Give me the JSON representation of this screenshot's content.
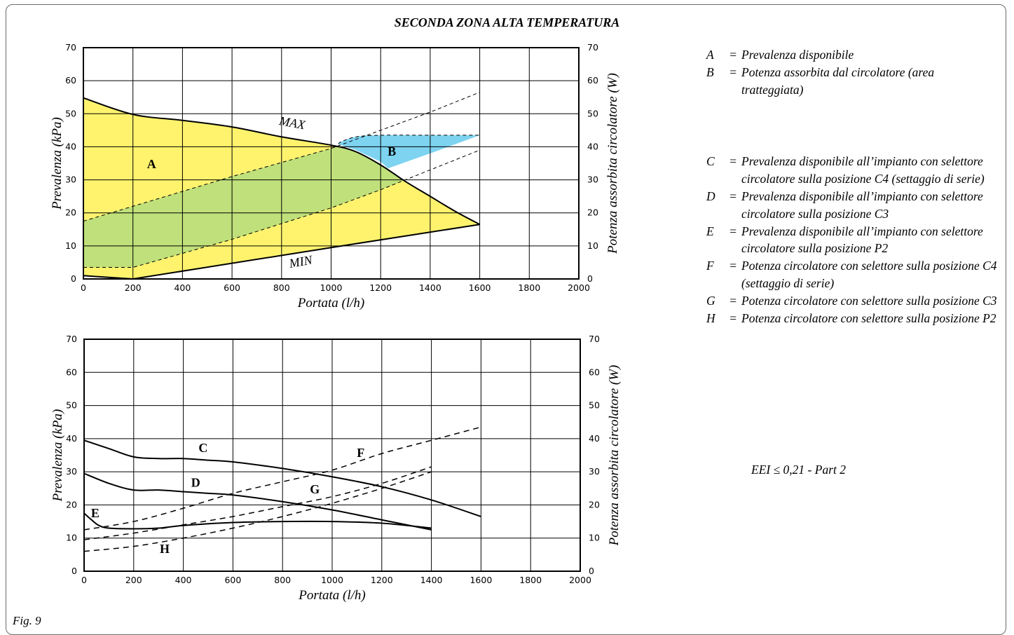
{
  "title": "SECONDA ZONA ALTA TEMPERATURA",
  "figure_label": "Fig. 9",
  "eei_note": "EEI ≤ 0,21 - Part 2",
  "legend": [
    {
      "key": "A",
      "text": "Prevalenza disponibile"
    },
    {
      "key": "B",
      "text": "Potenza assorbita dal circolatore (area tratteggiata)"
    },
    {
      "key": "C",
      "text": "Prevalenza disponibile all’impianto con selettore circolatore sulla posizione C4 (settaggio di serie)"
    },
    {
      "key": "D",
      "text": "Prevalenza disponibile all’impianto con selettore circolatore sulla posizione C3"
    },
    {
      "key": "E",
      "text": "Prevalenza disponibile all’impianto con selettore circolatore sulla posizione P2"
    },
    {
      "key": "F",
      "text": "Potenza circolatore con selettore sulla posizione C4 (settaggio di serie)"
    },
    {
      "key": "G",
      "text": "Potenza circolatore con selettore sulla posizione C3"
    },
    {
      "key": "H",
      "text": "Potenza circolatore con selettore sulla posizione P2"
    }
  ],
  "colors": {
    "yellow": "#fff36e",
    "green": "#bfe07a",
    "blue": "#7dd3f0",
    "line": "#000000",
    "grid": "#000000"
  },
  "chart_data": [
    {
      "type": "area",
      "xlabel": "Portata (l/h)",
      "ylabel": "Prevalenza (kPa)",
      "y2label": "Potenza assorbita circolatore (W)",
      "xlim": [
        0,
        2000
      ],
      "ylim": [
        0,
        70
      ],
      "y2lim": [
        0,
        70
      ],
      "xticks": [
        0,
        200,
        400,
        600,
        800,
        1000,
        1200,
        1400,
        1600,
        1800,
        2000
      ],
      "yticks": [
        0,
        10,
        20,
        30,
        40,
        50,
        60,
        70
      ],
      "grid": true,
      "max_label": "MAX",
      "min_label": "MIN",
      "area_a_label": "A",
      "area_b_label": "B",
      "series": [
        {
          "name": "MAX",
          "x": [
            0,
            200,
            400,
            600,
            800,
            1000,
            1100,
            1200,
            1300,
            1400,
            1500,
            1600
          ],
          "y": [
            54.8,
            49.8,
            48,
            46,
            43,
            40.5,
            38.5,
            34.5,
            29.5,
            25,
            20.5,
            16.5
          ]
        },
        {
          "name": "MIN",
          "x": [
            0,
            200,
            1000,
            1600
          ],
          "y": [
            1,
            0,
            9.5,
            16.5
          ]
        },
        {
          "name": "B",
          "x": [
            0,
            200,
            600,
            1000,
            1200,
            1400,
            1600
          ],
          "y": [
            17.5,
            22,
            31,
            39.5,
            45,
            50.5,
            56.5
          ],
          "y_lower": [
            3.5,
            3.5,
            12,
            21.5,
            27,
            33,
            39
          ],
          "plateau": [
            [
              1040,
              41.5
            ],
            [
              1100,
              43
            ],
            [
              1200,
              43.5
            ],
            [
              1400,
              43.5
            ],
            [
              1600,
              43.5
            ]
          ]
        }
      ]
    },
    {
      "type": "line",
      "xlabel": "Portata (l/h)",
      "ylabel": "Prevalenza (kPa)",
      "y2label": "Potenza assorbita circolatore (W)",
      "xlim": [
        0,
        2000
      ],
      "ylim": [
        0,
        70
      ],
      "y2lim": [
        0,
        70
      ],
      "xticks": [
        0,
        200,
        400,
        600,
        800,
        1000,
        1200,
        1400,
        1600,
        1800,
        2000
      ],
      "yticks": [
        0,
        10,
        20,
        30,
        40,
        50,
        60,
        70
      ],
      "grid": true,
      "series": [
        {
          "name": "C",
          "dashed": false,
          "x": [
            0,
            100,
            200,
            300,
            400,
            500,
            600,
            800,
            1000,
            1200,
            1400,
            1600
          ],
          "y": [
            39.5,
            37,
            34.5,
            34,
            34,
            33.5,
            33,
            31,
            28.5,
            25.5,
            21.5,
            16.5
          ]
        },
        {
          "name": "D",
          "dashed": false,
          "x": [
            0,
            100,
            200,
            300,
            400,
            500,
            600,
            800,
            1000,
            1200,
            1400
          ],
          "y": [
            29.5,
            26.5,
            24.5,
            24.5,
            24,
            23.5,
            23,
            21,
            18.5,
            15.5,
            12.5
          ]
        },
        {
          "name": "E",
          "dashed": false,
          "x": [
            0,
            30,
            60,
            100,
            200,
            300,
            400,
            600,
            800,
            1000,
            1200,
            1400
          ],
          "y": [
            17.5,
            15.5,
            13.8,
            13,
            12.8,
            13,
            13.8,
            14.7,
            15,
            15,
            14.5,
            13
          ]
        },
        {
          "name": "F",
          "dashed": true,
          "x": [
            0,
            200,
            400,
            600,
            800,
            1000,
            1200,
            1400,
            1600
          ],
          "y": [
            12.5,
            15,
            19,
            23.5,
            27,
            30.5,
            35.5,
            39.5,
            43.5
          ]
        },
        {
          "name": "G",
          "dashed": true,
          "x": [
            0,
            200,
            400,
            600,
            800,
            1000,
            1200,
            1400
          ],
          "y": [
            9.5,
            11.5,
            14,
            16.5,
            19.5,
            22.5,
            26.5,
            31.5
          ]
        },
        {
          "name": "H",
          "dashed": true,
          "x": [
            0,
            200,
            400,
            600,
            800,
            1000,
            1200,
            1400
          ],
          "y": [
            6,
            7.5,
            10,
            13,
            16.5,
            20.5,
            25,
            30
          ]
        }
      ]
    }
  ]
}
